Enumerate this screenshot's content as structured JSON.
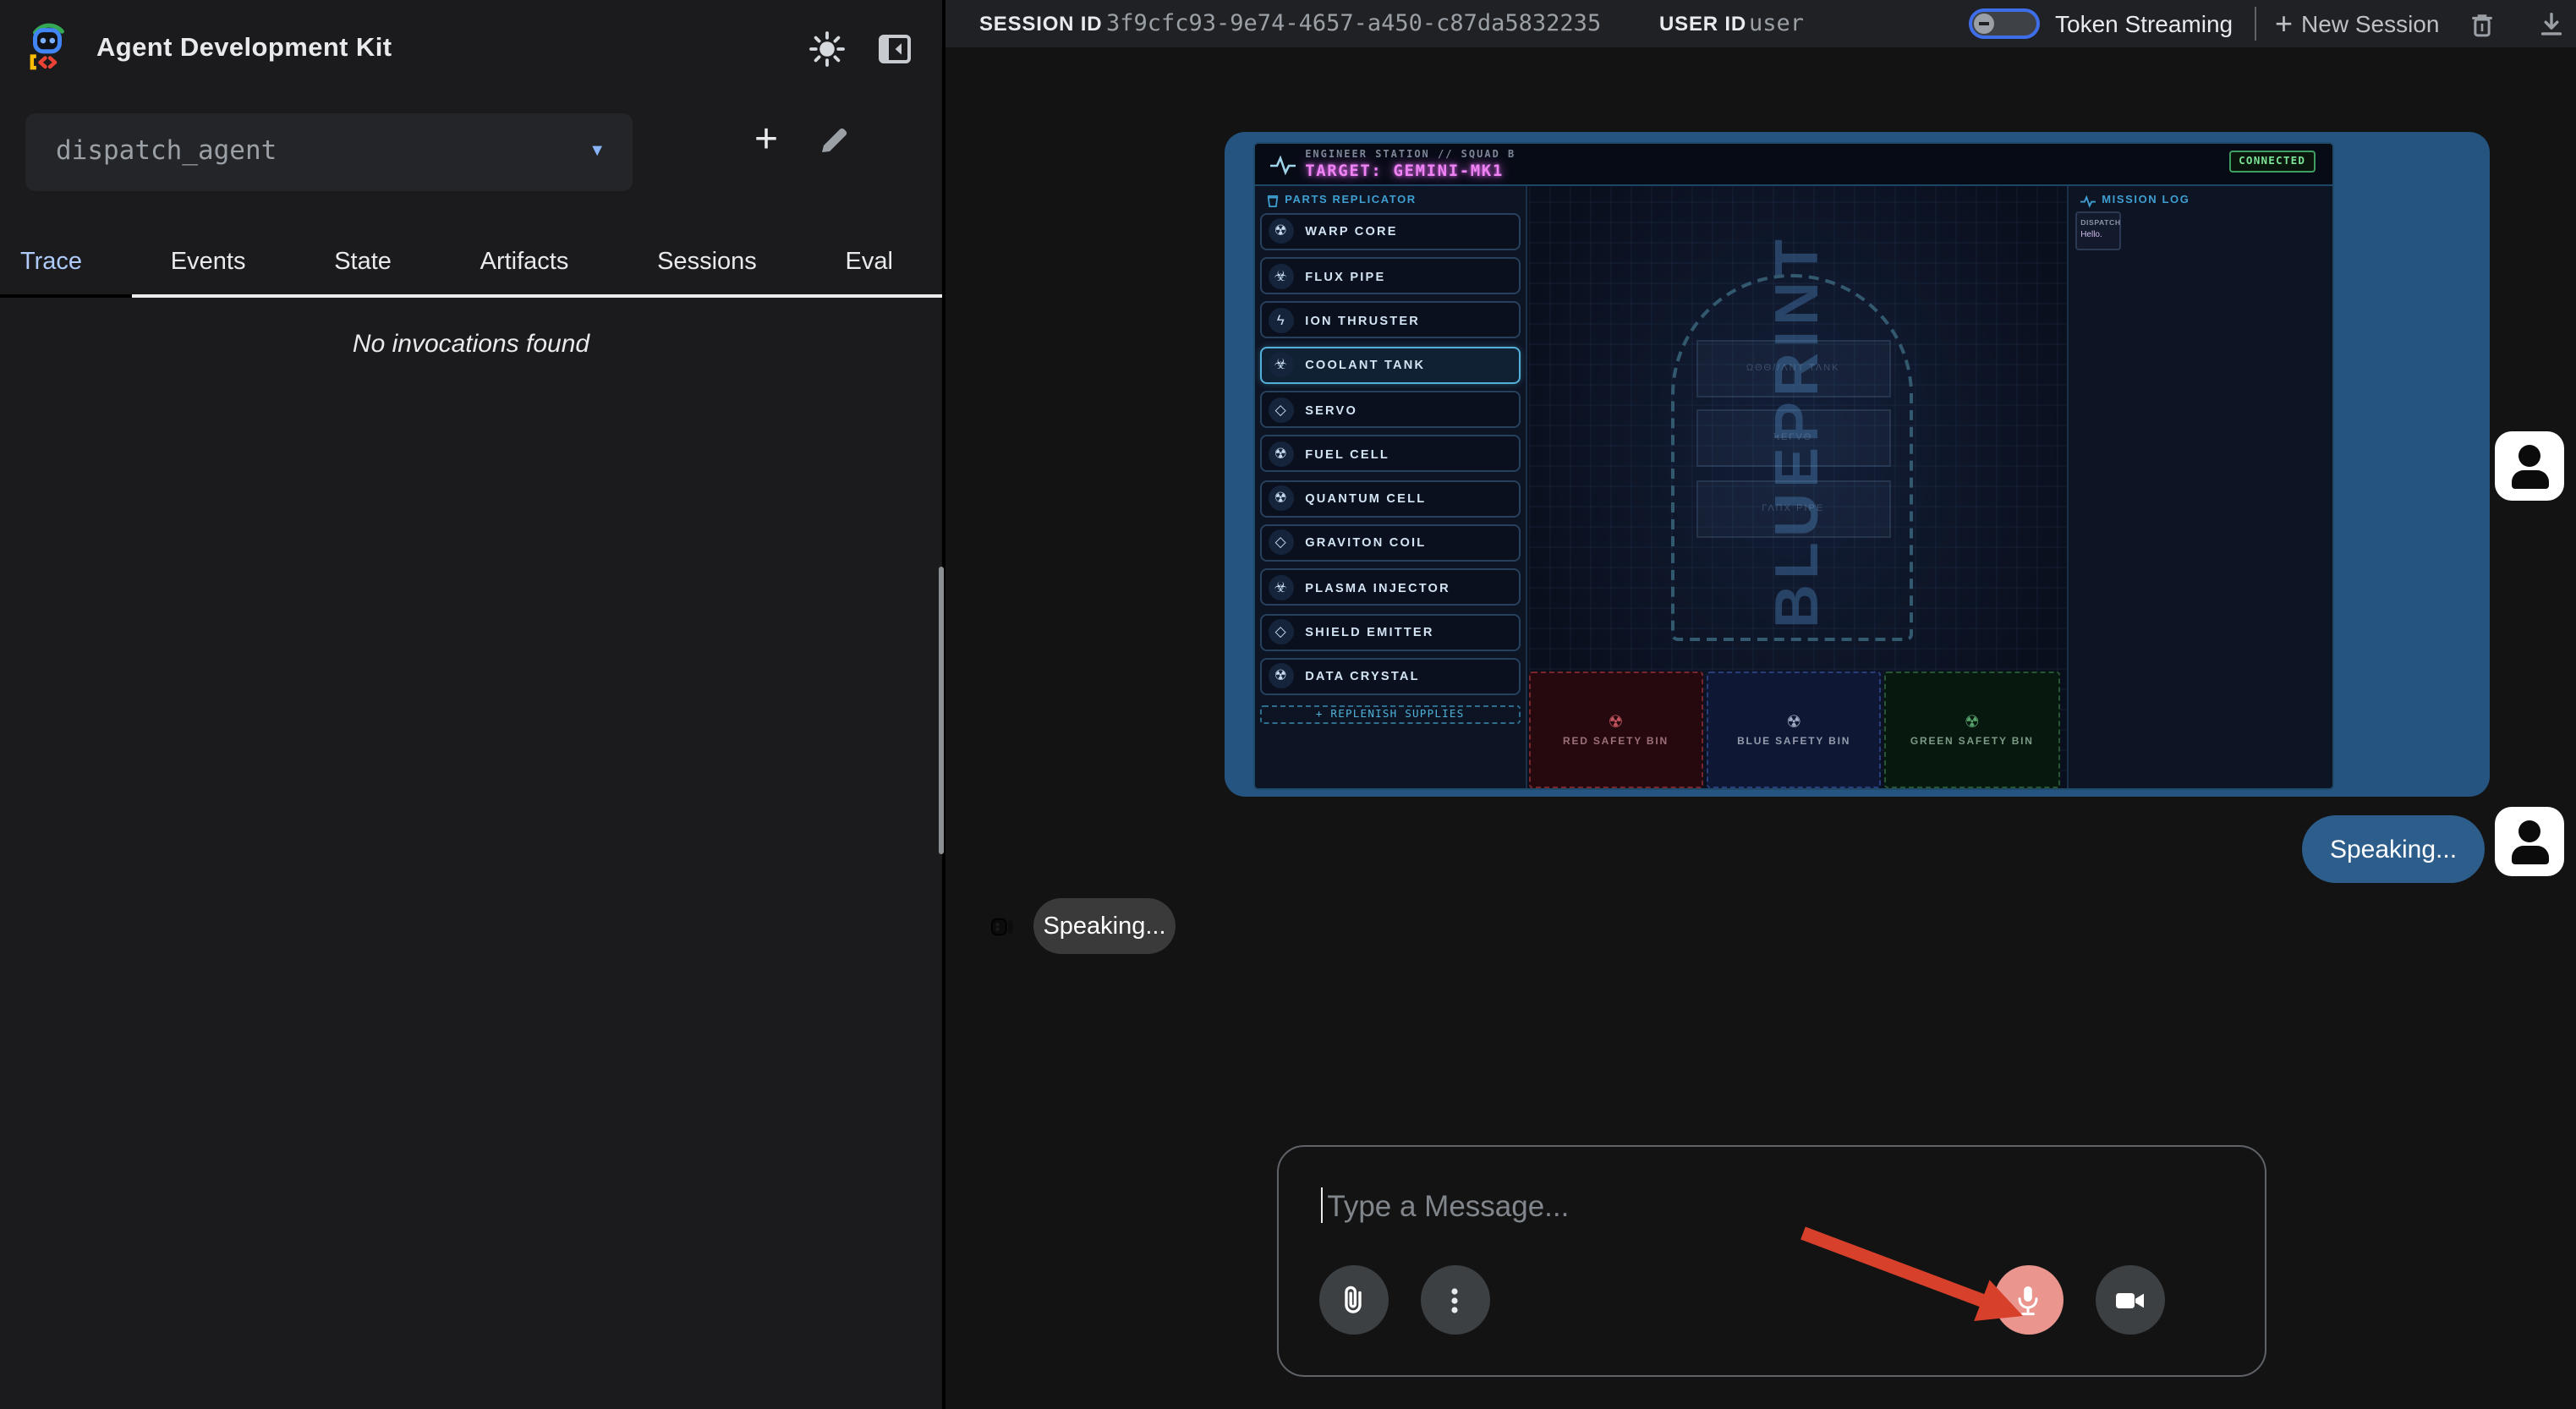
{
  "sidebar": {
    "app_title": "Agent Development Kit",
    "agent_select": {
      "value": "dispatch_agent"
    },
    "tabs": [
      {
        "label": "Trace",
        "active": true
      },
      {
        "label": "Events",
        "active": false
      },
      {
        "label": "State",
        "active": false
      },
      {
        "label": "Artifacts",
        "active": false
      },
      {
        "label": "Sessions",
        "active": false
      },
      {
        "label": "Eval",
        "active": false
      }
    ],
    "empty_message": "No invocations found"
  },
  "topbar": {
    "session_id_label": "SESSION ID",
    "session_id": "3f9cfc93-9e74-4657-a450-c87da5832235",
    "user_id_label": "USER ID",
    "user_id": "user",
    "token_streaming_label": "Token Streaming",
    "token_streaming_on": false,
    "new_session_label": "New Session"
  },
  "game": {
    "station_line": "ENGINEER STATION // SQUAD B",
    "target_line": "TARGET: GEMINI-MK1",
    "connected_label": "CONNECTED",
    "parts_header": "PARTS REPLICATOR",
    "parts": [
      {
        "label": "WARP CORE",
        "icon": "radiation",
        "selected": false
      },
      {
        "label": "FLUX PIPE",
        "icon": "biohazard",
        "selected": false
      },
      {
        "label": "ION THRUSTER",
        "icon": "bolt",
        "selected": false
      },
      {
        "label": "COOLANT TANK",
        "icon": "biohazard",
        "selected": true
      },
      {
        "label": "SERVO",
        "icon": "cube",
        "selected": false
      },
      {
        "label": "FUEL CELL",
        "icon": "radiation",
        "selected": false
      },
      {
        "label": "QUANTUM CELL",
        "icon": "radiation",
        "selected": false
      },
      {
        "label": "GRAVITON COIL",
        "icon": "cube",
        "selected": false
      },
      {
        "label": "PLASMA INJECTOR",
        "icon": "biohazard",
        "selected": false
      },
      {
        "label": "SHIELD EMITTER",
        "icon": "cube",
        "selected": false
      },
      {
        "label": "DATA CRYSTAL",
        "icon": "radiation",
        "selected": false
      }
    ],
    "replenish_label": "+ REPLENISH SUPPLIES",
    "blueprint": {
      "watermark": "BLUEPRINT",
      "slots": [
        "ΩΘΘ//ΛΝΤ ΤΛΝΚ",
        "ϞΕΓVΘ",
        "ΓΛΠΧ ΡΙΡΕ"
      ]
    },
    "mission_log": {
      "header": "MISSION LOG",
      "entry_author": "DISPATCH",
      "entry_text": "Hello."
    },
    "bins": [
      {
        "label": "RED SAFETY BIN",
        "color": "red"
      },
      {
        "label": "BLUE SAFETY BIN",
        "color": "blue"
      },
      {
        "label": "GREEN SAFETY BIN",
        "color": "green"
      }
    ]
  },
  "chat": {
    "user_bubble": "Speaking...",
    "agent_bubble": "Speaking..."
  },
  "composer": {
    "placeholder": "Type a Message..."
  },
  "glyphs": {
    "plus": "+",
    "caret": "▼",
    "radiation": "☢",
    "biohazard": "☣",
    "bolt": "ϟ",
    "cube": "◇"
  },
  "colors": {
    "accent_blue": "#8ab4f8",
    "toggle_border": "#3f6eea",
    "game_card_blue": "#24547f",
    "target_magenta": "#ef83f3",
    "connected_green": "#7ce495",
    "user_bubble_blue": "#2d5e8b",
    "mic_highlight": "#ea958e",
    "annotation_arrow_red": "#d7402b"
  }
}
